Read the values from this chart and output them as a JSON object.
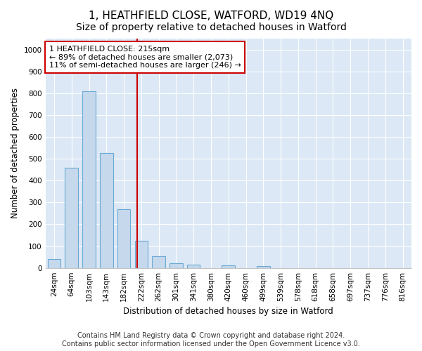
{
  "title": "1, HEATHFIELD CLOSE, WATFORD, WD19 4NQ",
  "subtitle": "Size of property relative to detached houses in Watford",
  "xlabel": "Distribution of detached houses by size in Watford",
  "ylabel": "Number of detached properties",
  "categories": [
    "24sqm",
    "64sqm",
    "103sqm",
    "143sqm",
    "182sqm",
    "222sqm",
    "262sqm",
    "301sqm",
    "341sqm",
    "380sqm",
    "420sqm",
    "460sqm",
    "499sqm",
    "539sqm",
    "578sqm",
    "618sqm",
    "658sqm",
    "697sqm",
    "737sqm",
    "776sqm",
    "816sqm"
  ],
  "values": [
    42,
    460,
    810,
    525,
    270,
    125,
    55,
    22,
    14,
    0,
    12,
    0,
    9,
    0,
    0,
    0,
    0,
    0,
    0,
    0,
    0
  ],
  "bar_color": "#c5d8ec",
  "bar_edge_color": "#6aaad4",
  "highlight_line_color": "#cc0000",
  "highlight_line_index": 4.75,
  "annotation_text": "1 HEATHFIELD CLOSE: 215sqm\n← 89% of detached houses are smaller (2,073)\n11% of semi-detached houses are larger (246) →",
  "annotation_box_color": "#cc0000",
  "footer_line1": "Contains HM Land Registry data © Crown copyright and database right 2024.",
  "footer_line2": "Contains public sector information licensed under the Open Government Licence v3.0.",
  "ylim": [
    0,
    1050
  ],
  "yticks": [
    0,
    100,
    200,
    300,
    400,
    500,
    600,
    700,
    800,
    900,
    1000
  ],
  "bg_color": "#dce8f5",
  "fig_bg_color": "#ffffff",
  "title_fontsize": 11,
  "tick_fontsize": 7.5,
  "label_fontsize": 8.5,
  "footer_fontsize": 7,
  "bar_width": 0.75
}
